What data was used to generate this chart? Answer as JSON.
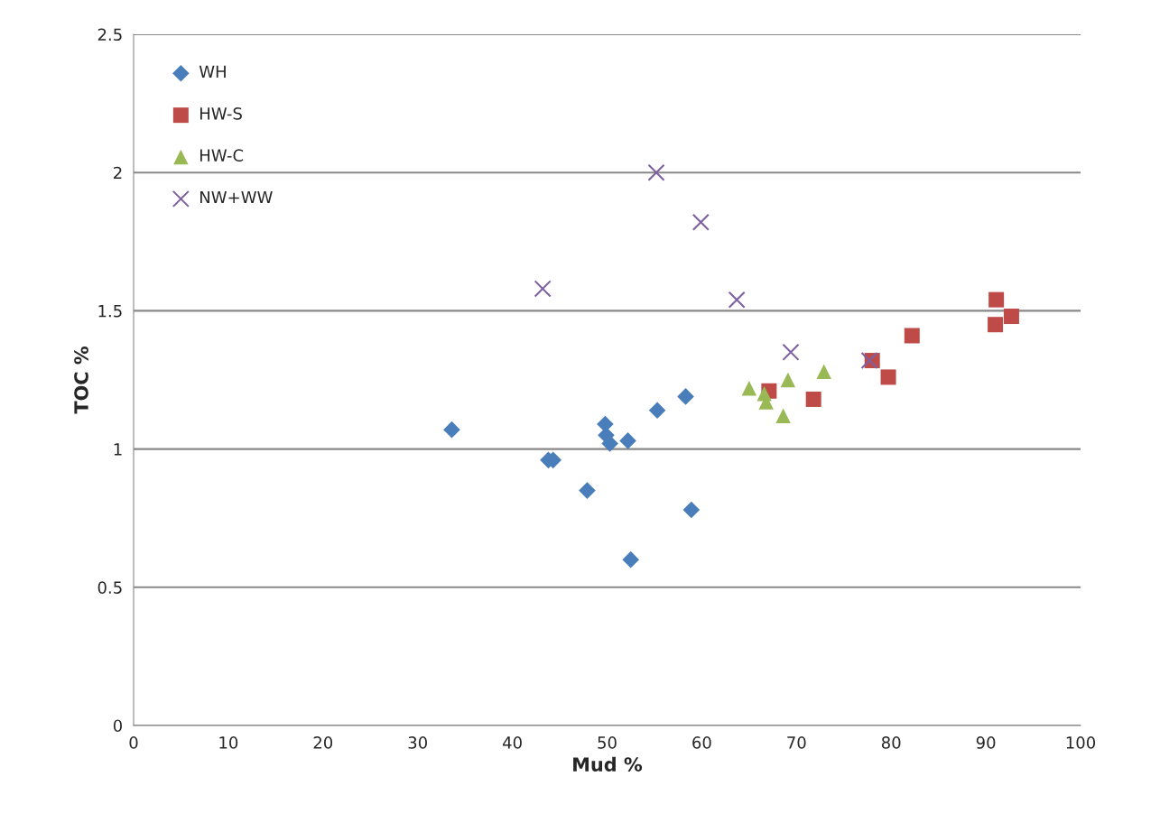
{
  "chart_data": {
    "type": "scatter",
    "xlabel": "Mud %",
    "ylabel": "TOC %",
    "xlim": [
      0,
      100
    ],
    "xticks": [
      0,
      10,
      20,
      30,
      40,
      50,
      60,
      70,
      80,
      90,
      100
    ],
    "ylim": [
      0,
      2.5
    ],
    "yticks": [
      0,
      0.5,
      1,
      1.5,
      2,
      2.5
    ],
    "grid": "y",
    "legend": "top left",
    "series": [
      {
        "name": "WH",
        "color": "#4a7ebb",
        "marker": "diamond",
        "x": [
          33.6,
          43.8,
          44.3,
          47.9,
          49.8,
          49.9,
          50.3,
          52.2,
          52.5,
          55.3,
          58.3,
          58.9
        ],
        "values": [
          1.07,
          0.96,
          0.96,
          0.85,
          1.09,
          1.05,
          1.02,
          1.03,
          0.6,
          1.14,
          1.19,
          0.78
        ]
      },
      {
        "name": "HW-S",
        "color": "#be4b48",
        "marker": "square",
        "x": [
          67.1,
          71.8,
          78.0,
          79.7,
          82.2,
          91.1,
          91.0,
          92.7
        ],
        "values": [
          1.21,
          1.18,
          1.32,
          1.26,
          1.41,
          1.54,
          1.45,
          1.48
        ]
      },
      {
        "name": "HW-C",
        "color": "#98b954",
        "marker": "triangle",
        "x": [
          65.0,
          66.6,
          66.8,
          68.6,
          69.1,
          72.9
        ],
        "values": [
          1.22,
          1.2,
          1.17,
          1.12,
          1.25,
          1.28
        ]
      },
      {
        "name": "NW+WW",
        "color": "#7d60a0",
        "marker": "cross",
        "x": [
          43.2,
          55.2,
          59.9,
          63.7,
          69.4,
          77.7
        ],
        "values": [
          1.58,
          2.0,
          1.82,
          1.54,
          1.35,
          1.32
        ]
      }
    ]
  }
}
